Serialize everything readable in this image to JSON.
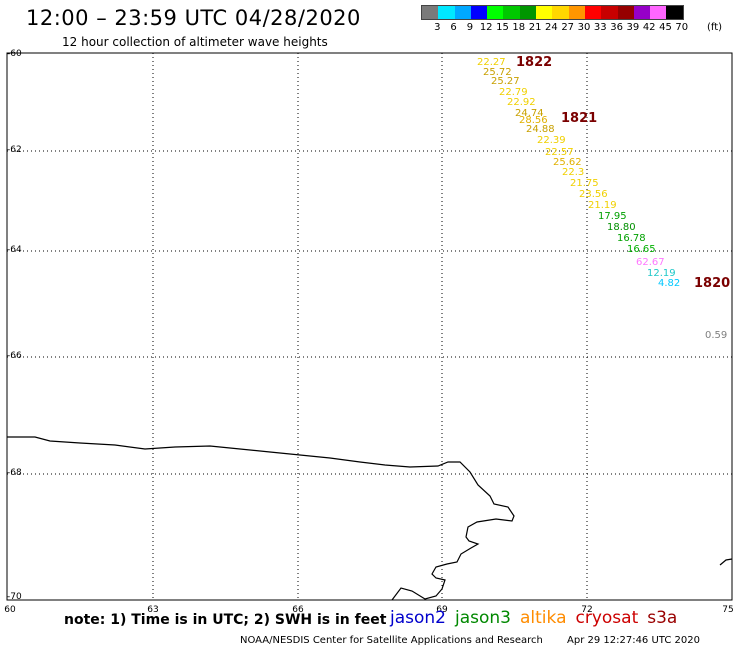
{
  "header": {
    "title": "12:00 – 23:59 UTC 04/28/2020",
    "subtitle": "12 hour collection of altimeter wave heights"
  },
  "legend": {
    "unit": "(ft)",
    "items": [
      {
        "label": "3",
        "color": "#7a7a7a"
      },
      {
        "label": "6",
        "color": "#00e8ff"
      },
      {
        "label": "9",
        "color": "#00a8ff"
      },
      {
        "label": "12",
        "color": "#0000ff"
      },
      {
        "label": "15",
        "color": "#00ff00"
      },
      {
        "label": "18",
        "color": "#00c800"
      },
      {
        "label": "21",
        "color": "#009600"
      },
      {
        "label": "24",
        "color": "#ffff00"
      },
      {
        "label": "27",
        "color": "#ffd700"
      },
      {
        "label": "30",
        "color": "#ff9600"
      },
      {
        "label": "33",
        "color": "#ff0000"
      },
      {
        "label": "36",
        "color": "#c80000"
      },
      {
        "label": "39",
        "color": "#960000"
      },
      {
        "label": "42",
        "color": "#9600c8"
      },
      {
        "label": "45",
        "color": "#ff66ff"
      },
      {
        "label": "70",
        "color": "#000000"
      }
    ]
  },
  "map": {
    "lon_range": [
      60,
      75
    ],
    "lat_range": [
      -70,
      -60
    ],
    "x_ticks": [
      "60",
      "63",
      "66",
      "69",
      "72",
      "75"
    ],
    "y_ticks": [
      "-60",
      "-62",
      "-64",
      "-66",
      "-68",
      "-70"
    ],
    "gridlines": "dotted",
    "wave_heights": [
      {
        "text": "22.27",
        "color": "#f0d000"
      },
      {
        "text": "25.72",
        "color": "#c8a000"
      },
      {
        "text": "25.27",
        "color": "#c8a000"
      },
      {
        "text": "22.79",
        "color": "#f0d000"
      },
      {
        "text": "22.92",
        "color": "#f0d000"
      },
      {
        "text": "24.74",
        "color": "#c8a000"
      },
      {
        "text": "28.56",
        "color": "#e0b000"
      },
      {
        "text": "24.88",
        "color": "#c8a000"
      },
      {
        "text": "22.39",
        "color": "#f0d000"
      },
      {
        "text": "22.57",
        "color": "#f0d000"
      },
      {
        "text": "25.62",
        "color": "#e0b000"
      },
      {
        "text": "22.3",
        "color": "#f0d000"
      },
      {
        "text": "21.75",
        "color": "#f0d000"
      },
      {
        "text": "23.56",
        "color": "#f0d000"
      },
      {
        "text": "21.19",
        "color": "#f0d000"
      },
      {
        "text": "17.95",
        "color": "#00a000"
      },
      {
        "text": "18.80",
        "color": "#009000"
      },
      {
        "text": "16.78",
        "color": "#00a000"
      },
      {
        "text": "16.65",
        "color": "#00b000"
      },
      {
        "text": "62.67",
        "color": "#ff77ff"
      },
      {
        "text": "12.19",
        "color": "#20c8c8"
      },
      {
        "text": "4.82",
        "color": "#00c8ff"
      },
      {
        "text": "0.59",
        "color": "#808080"
      }
    ],
    "pass_times": [
      "1822",
      "1821",
      "1820"
    ]
  },
  "footer": {
    "note": "note: 1) Time is in UTC; 2) SWH is in feet",
    "satellites": [
      {
        "name": "jason2",
        "color": "#0000cc"
      },
      {
        "name": "jason3",
        "color": "#008800"
      },
      {
        "name": "altika",
        "color": "#ff8c00"
      },
      {
        "name": "cryosat",
        "color": "#cc0000"
      },
      {
        "name": "s3a",
        "color": "#990000"
      }
    ],
    "credit": "NOAA/NESDIS Center for Satellite Applications and Research",
    "timestamp": "Apr 29 12:27:46 UTC 2020"
  }
}
